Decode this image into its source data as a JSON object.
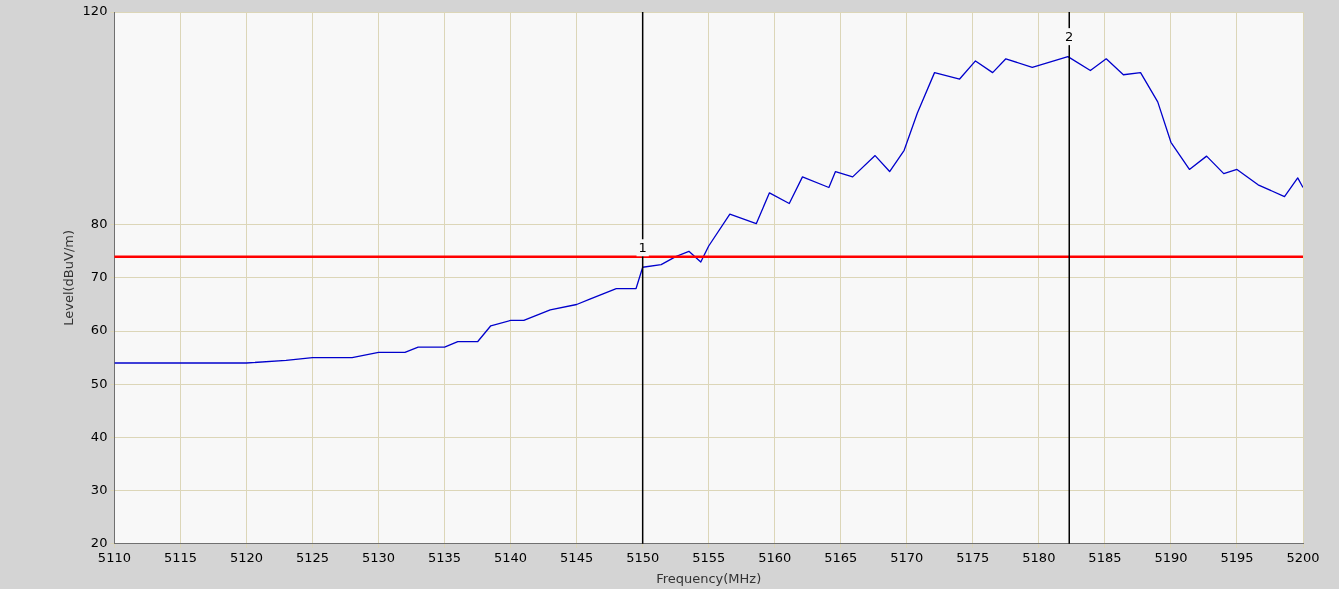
{
  "chart_data": {
    "type": "line",
    "xlabel": "Frequency(MHz)",
    "ylabel": "Level(dBuV/m)",
    "xlim": [
      5110,
      5200
    ],
    "xticks": [
      5110,
      5115,
      5120,
      5125,
      5130,
      5135,
      5140,
      5145,
      5150,
      5155,
      5160,
      5165,
      5170,
      5175,
      5180,
      5185,
      5190,
      5195,
      5200
    ],
    "ylim": [
      20,
      120
    ],
    "yticks": [
      20,
      30,
      40,
      50,
      60,
      70,
      80,
      120
    ],
    "grid": true,
    "marker": "none",
    "line_style": "solid",
    "series": [
      {
        "color": "#0000cc",
        "x": [
          5110,
          5112,
          5115,
          5118,
          5120,
          5123,
          5125,
          5128,
          5130,
          5132,
          5133,
          5135,
          5136,
          5137.5,
          5138.5,
          5140,
          5141,
          5142,
          5143,
          5145,
          5146,
          5147,
          5148,
          5149.5,
          5150,
          5151.4,
          5152.5,
          5153.5,
          5154.4,
          5155,
          5156.6,
          5158.6,
          5159.6,
          5161.1,
          5162.1,
          5164.1,
          5164.6,
          5165.9,
          5167.6,
          5168.7,
          5169.8,
          5170.8,
          5172.1,
          5174,
          5175.2,
          5176.5,
          5177.5,
          5179.5,
          5182.2,
          5183.9,
          5185.1,
          5186.4,
          5187.7,
          5189,
          5190,
          5191.4,
          5192.7,
          5194,
          5195,
          5196.6,
          5198.6,
          5199.6,
          5200
        ],
        "values": [
          54,
          54,
          54,
          54,
          54,
          54.5,
          55,
          55,
          56,
          56,
          57,
          57,
          58,
          58,
          61,
          62,
          62,
          63,
          64,
          65,
          66,
          67,
          68,
          68,
          72,
          72.5,
          74,
          75,
          73,
          76,
          82,
          80.2,
          86,
          84,
          89,
          87,
          90,
          89,
          93,
          90,
          94,
          101,
          108.6,
          107.4,
          110.8,
          108.6,
          111.2,
          109.6,
          111.6,
          109,
          111.2,
          108.2,
          108.6,
          103.1,
          95.5,
          90.4,
          92.9,
          89.6,
          90.4,
          87.5,
          85.3,
          88.8,
          87
        ]
      }
    ],
    "ref_lines": [
      {
        "axis": "y",
        "value": 74,
        "color": "#ff0000"
      },
      {
        "axis": "x",
        "value": 5150,
        "color": "#000000"
      },
      {
        "axis": "x",
        "value": 5182.3,
        "color": "#000000"
      }
    ],
    "annotations": [
      {
        "text": "1",
        "x": 5150,
        "y": 72
      },
      {
        "text": "2",
        "x": 5182.3,
        "y": 111.7
      }
    ]
  }
}
